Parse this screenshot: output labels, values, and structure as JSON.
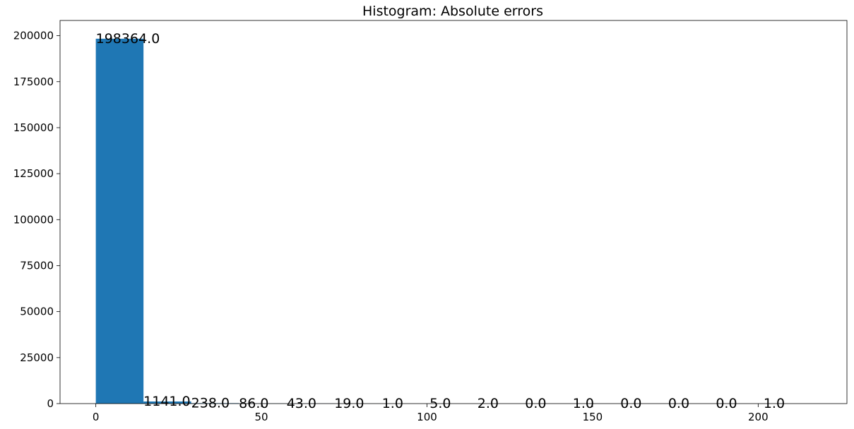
{
  "chart_data": {
    "type": "bar",
    "title": "Histogram: Absolute errors",
    "xlabel": "",
    "ylabel": "",
    "bin_edges": [
      0,
      14.4,
      28.8,
      43.2,
      57.6,
      72.0,
      86.4,
      100.8,
      115.2,
      129.6,
      144.0,
      158.4,
      172.8,
      187.2,
      201.6,
      216.0
    ],
    "values": [
      198364,
      1141,
      238,
      86,
      43,
      19,
      1,
      5,
      2,
      0,
      1,
      0,
      0,
      0,
      1
    ],
    "data_labels": [
      "198364.0",
      "1141.0",
      "238.0",
      "86.0",
      "43.0",
      "19.0",
      "1.0",
      "5.0",
      "2.0",
      "0.0",
      "1.0",
      "0.0",
      "0.0",
      "0.0",
      "1.0"
    ],
    "xlim": [
      -10.8,
      226.8
    ],
    "ylim": [
      0,
      208282
    ],
    "x_ticks": [
      0,
      50,
      100,
      150,
      200
    ],
    "x_tick_labels": [
      "0",
      "50",
      "100",
      "150",
      "200"
    ],
    "y_ticks": [
      0,
      25000,
      50000,
      75000,
      100000,
      125000,
      150000,
      175000,
      200000
    ],
    "y_tick_labels": [
      "0",
      "25000",
      "50000",
      "75000",
      "100000",
      "125000",
      "150000",
      "175000",
      "200000"
    ],
    "grid": false,
    "bar_color": "#1f77b4"
  }
}
